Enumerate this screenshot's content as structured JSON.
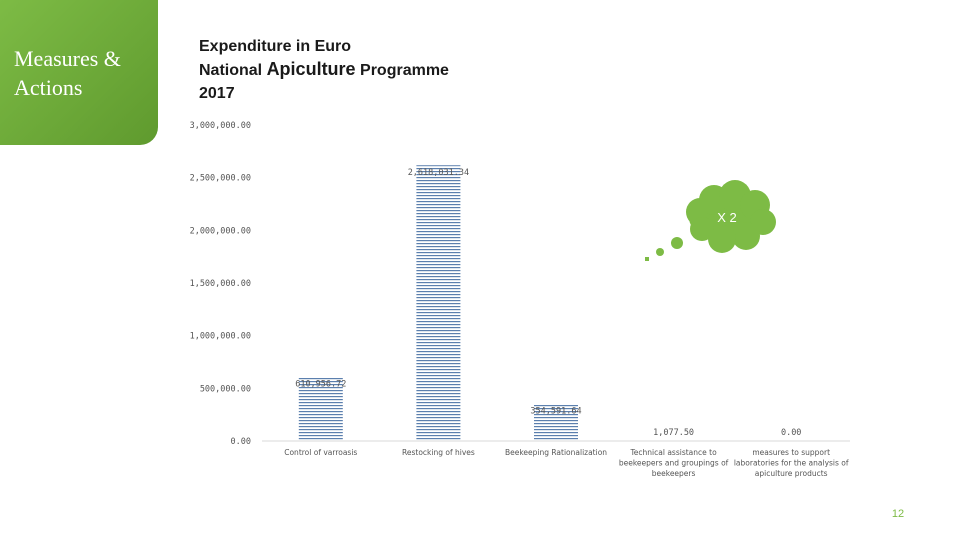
{
  "sidebar": {
    "label_line1": "Measures &",
    "label_line2": "Actions"
  },
  "header": {
    "title_line1": "Expenditure in Euro",
    "title_line2_prefix": "National ",
    "title_line2_big": "Apiculture",
    "title_line2_suffix": " Programme",
    "title_line3": "2017"
  },
  "annotation": {
    "text": "X 2"
  },
  "page_number": "12",
  "colors": {
    "accent": "#7dbb45",
    "bar_stripe": "#5b7fae",
    "cloud": "#7dbb45"
  },
  "chart_data": {
    "type": "bar",
    "title": "Expenditure in Euro National Apiculture Programme 2017",
    "xlabel": "",
    "ylabel": "",
    "ylim": [
      0,
      3000000
    ],
    "grid": false,
    "y_ticks": [
      0,
      500000,
      1000000,
      1500000,
      2000000,
      2500000,
      3000000
    ],
    "y_tick_labels": [
      "0.00",
      "500,000.00",
      "1,000,000.00",
      "1,500,000.00",
      "2,000,000.00",
      "2,500,000.00",
      "3,000,000.00"
    ],
    "categories": [
      [
        "Control of varroasis"
      ],
      [
        "Restocking of hives"
      ],
      [
        "Beekeeping Rationalization"
      ],
      [
        "Technical assistance to",
        "beekeepers and groupings of",
        "beekeepers"
      ],
      [
        "measures to support",
        "laboratories for the analysis of",
        "apiculture products"
      ]
    ],
    "values": [
      610956.72,
      2618031.34,
      354591.64,
      1077.5,
      0.0
    ],
    "value_labels": [
      "610,956.72",
      "2,618,031.34",
      "354,591.64",
      "1,077.50",
      "0.00"
    ]
  }
}
